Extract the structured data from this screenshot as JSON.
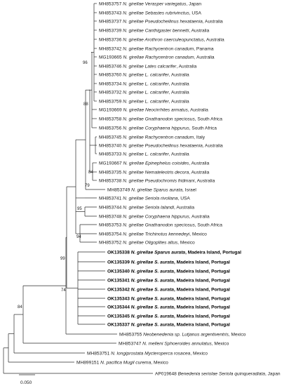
{
  "taxa": [
    {
      "acc": "MH853757",
      "genus": "N. girellae",
      "host": "Verasper variegatus",
      "loc": ", Japan",
      "bold": false
    },
    {
      "acc": "MH853743",
      "genus": "N. girellae",
      "host": "Sebastes rubrivinctus",
      "loc": ", USA",
      "bold": false
    },
    {
      "acc": "MH853737",
      "genus": "N. girellae",
      "host": "Pseudocheilinus hexataenia",
      "loc": ", Australia",
      "bold": false
    },
    {
      "acc": "MH853739",
      "genus": "N. girellae",
      "host": "Canthigaster bennetti",
      "loc": ", Australia",
      "bold": false
    },
    {
      "acc": "MH853736",
      "genus": "N. girellae",
      "host": "Arothron caerculeopunctatus",
      "loc": ", Australia",
      "bold": false
    },
    {
      "acc": "MH853742",
      "genus": "N. girellae",
      "host": "Rachycentron canadum",
      "loc": ", Panama",
      "bold": false
    },
    {
      "acc": "MG193665",
      "genus": "N. girellae",
      "host": "Rachycentron canadum",
      "loc": ", Australia",
      "bold": false
    },
    {
      "acc": "MH853746",
      "genus": "N. girellae",
      "host": "Lates calcarifer",
      "loc": ", Australia",
      "bold": false
    },
    {
      "acc": "MH853760",
      "genus": "N. girellae",
      "host": "L. calcarifer",
      "loc": ", Australia",
      "bold": false
    },
    {
      "acc": "MH853734",
      "genus": "N. girellae",
      "host": "L. calcarifer",
      "loc": ", Australia",
      "bold": false
    },
    {
      "acc": "MH853732",
      "genus": "N. girellae",
      "host": "L. calcarifer",
      "loc": ", Australia",
      "bold": false
    },
    {
      "acc": "MH853759",
      "genus": "N. girellae",
      "host": "L. calcarifer",
      "loc": ", Australia",
      "bold": false
    },
    {
      "acc": "MG193669",
      "genus": "N. girellae",
      "host": "Neocirrhites armatus",
      "loc": ", Australia",
      "bold": false
    },
    {
      "acc": "MH853758",
      "genus": "N. girellae",
      "host": "Gnathanodon speciosus",
      "loc": ", South Africa",
      "bold": false
    },
    {
      "acc": "MH853756",
      "genus": "N. girellae",
      "host": "Coryphaena hippurus",
      "loc": ", South Africa",
      "bold": false
    },
    {
      "acc": "MH853745",
      "genus": "N. girellae",
      "host": "Rachycentron canadum",
      "loc": ", Italy",
      "bold": false
    },
    {
      "acc": "MH853740",
      "genus": "N. girellae",
      "host": "Pseudocheilinus hexataenia",
      "loc": ", Australia",
      "bold": false
    },
    {
      "acc": "MH853733",
      "genus": "N. girellae",
      "host": "L. calcarifer",
      "loc": ", Australia",
      "bold": false
    },
    {
      "acc": "MG193667",
      "genus": "N. girellae",
      "host": "Epinephelus coioides",
      "loc": ", Australia",
      "bold": false
    },
    {
      "acc": "MH853735",
      "genus": "N. girellae",
      "host": "Nemateleotris decora",
      "loc": ", Australia",
      "bold": false
    },
    {
      "acc": "MH853738",
      "genus": "N. girellae",
      "host": "Pseudochromis fridmani",
      "loc": ", Australia",
      "bold": false
    },
    {
      "acc": "MH853749",
      "genus": "N. girellae",
      "host": "Sparus aurata",
      "loc": ", Israel",
      "bold": false
    },
    {
      "acc": "MH853741",
      "genus": "N. girellae",
      "host": "Seriola rivoliana",
      "loc": ", USA",
      "bold": false
    },
    {
      "acc": "MH853744",
      "genus": "N. girellae",
      "host": "Seriola lalandi",
      "loc": ", Australia",
      "bold": false
    },
    {
      "acc": "MH853748",
      "genus": "N. girellae",
      "host": "Coryphaena hippurus",
      "loc": ", Australia",
      "bold": false
    },
    {
      "acc": "MH853753",
      "genus": "N. girellae",
      "host": "Gnathanodon speciosus",
      "loc": ", South Africa",
      "bold": false
    },
    {
      "acc": "MH853754",
      "genus": "N. girellae",
      "host": "Trichinotus kennedeyi",
      "loc": ", Mexico",
      "bold": false
    },
    {
      "acc": "MH853752",
      "genus": "N. girellae",
      "host": "Oligoplites altus",
      "loc": ", Mexico",
      "bold": false
    },
    {
      "acc": "OK135338",
      "genus": "N. girellae",
      "host": "Sparus aurata",
      "loc": ", Madeira Island, Portugal",
      "bold": true
    },
    {
      "acc": "OK135339",
      "genus": "N. girellae",
      "host": "S. aurata",
      "loc": ", Madeira Island, Portugal",
      "bold": true
    },
    {
      "acc": "OK135340",
      "genus": "N. girellae",
      "host": "S. aurata",
      "loc": ", Madeira Island, Portugal",
      "bold": true
    },
    {
      "acc": "OK135341",
      "genus": "N. girellae",
      "host": "S. aurata",
      "loc": ", Madeira Island, Portugal",
      "bold": true
    },
    {
      "acc": "OK135342",
      "genus": "N. girellae",
      "host": "S. aurata",
      "loc": ", Madeira Island, Portugal",
      "bold": true
    },
    {
      "acc": "OK135343",
      "genus": "N. girellae",
      "host": "S. aurata",
      "loc": ", Madeira Island, Portugal",
      "bold": true
    },
    {
      "acc": "OK135344",
      "genus": "N. girellae",
      "host": "S. aurata",
      "loc": ", Madeira Island, Portugal",
      "bold": true
    },
    {
      "acc": "OK135345",
      "genus": "N. girellae",
      "host": "S. aurata",
      "loc": ", Madeira Island, Portugal",
      "bold": true
    },
    {
      "acc": "OK135337",
      "genus": "N. girellae",
      "host": "S. aurata",
      "loc": ", Madeira Island, Portugal",
      "bold": true
    },
    {
      "acc": "MH853755",
      "genus": "Neobenedenia sp.",
      "host": "Lutjanus argentiventris",
      "loc": ", Mexico",
      "bold": false
    },
    {
      "acc": "MH853747",
      "genus": "N. melleni",
      "host": "Sphoeroides annulatus",
      "loc": ", Mexico",
      "bold": false
    },
    {
      "acc": "MH853751",
      "genus": "N. longiprostata",
      "host": "Mycteroperca rosacea",
      "loc": ", Mexico",
      "bold": false
    },
    {
      "acc": "MH899151",
      "genus": "N. pacifica",
      "host": "Mugil curema",
      "loc": ", Mexico",
      "bold": false
    },
    {
      "acc": "AP019648",
      "genus": "Benedenia seriolae",
      "host": "Seriola quinqueradiata",
      "loc": ", Japan",
      "bold": false
    }
  ],
  "support_values": [
    "96",
    "88",
    "84",
    "79",
    "95",
    "94",
    "99",
    "74",
    "84"
  ],
  "scale_bar": {
    "label": "0.050",
    "value": 0.05
  }
}
